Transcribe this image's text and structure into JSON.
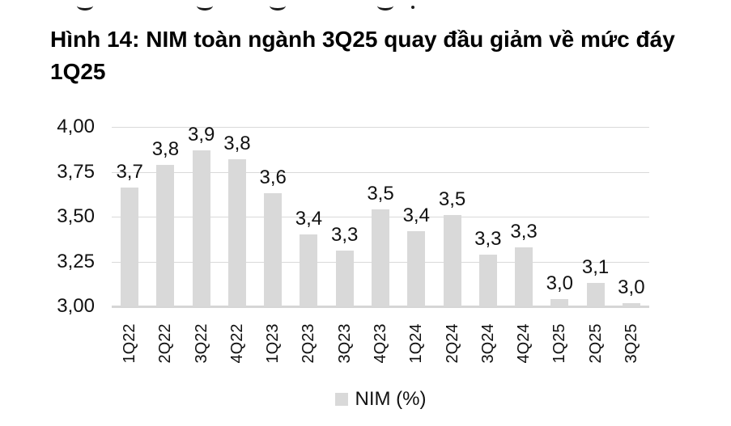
{
  "figure": {
    "title": "Hình 14: NIM toàn ngành 3Q25 quay đầu giảm về mức đáy 1Q25"
  },
  "chart_data": {
    "type": "bar",
    "title": "Hình 14: NIM toàn ngành 3Q25 quay đầu giảm về mức đáy 1Q25",
    "series_name": "NIM (%)",
    "categories": [
      "1Q22",
      "2Q22",
      "3Q22",
      "4Q22",
      "1Q23",
      "2Q23",
      "3Q23",
      "4Q23",
      "1Q24",
      "2Q24",
      "3Q24",
      "4Q24",
      "1Q25",
      "2Q25",
      "3Q25"
    ],
    "values": [
      3.66,
      3.79,
      3.87,
      3.82,
      3.63,
      3.4,
      3.31,
      3.54,
      3.42,
      3.51,
      3.29,
      3.33,
      3.04,
      3.13,
      3.02
    ],
    "value_labels": [
      "3,7",
      "3,8",
      "3,9",
      "3,8",
      "3,6",
      "3,4",
      "3,3",
      "3,5",
      "3,4",
      "3,5",
      "3,3",
      "3,3",
      "3,0",
      "3,1",
      "3,0"
    ],
    "xlabel": "",
    "ylabel": "",
    "ylim": [
      3.0,
      4.0
    ],
    "yticks": [
      3.0,
      3.25,
      3.5,
      3.75,
      4.0
    ],
    "ytick_labels": [
      "3,00",
      "3,25",
      "3,50",
      "3,75",
      "4,00"
    ],
    "grid": true,
    "legend_position": "bottom",
    "bar_color": "#d9d9d9",
    "gridline_color": "#d9d9d9",
    "text_color": "#111111",
    "decimal_separator": ","
  }
}
